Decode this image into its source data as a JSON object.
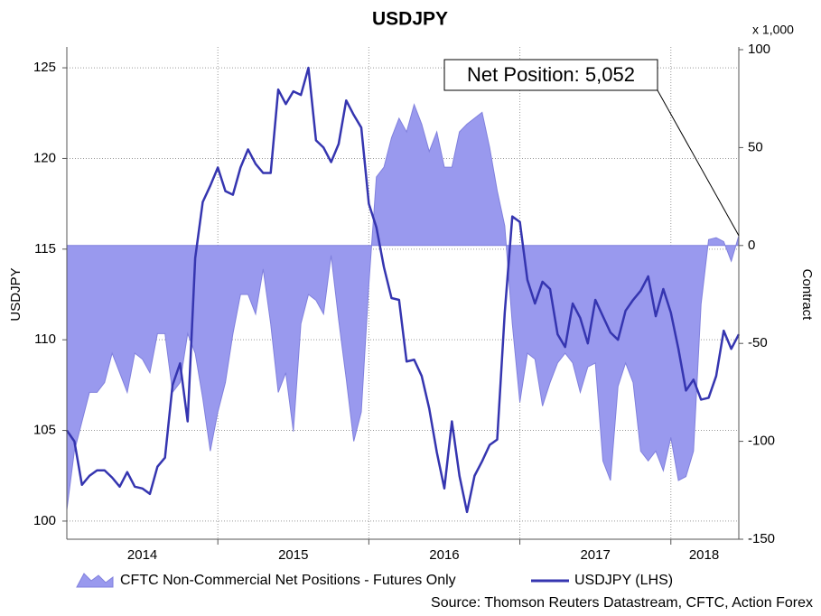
{
  "chart_data": {
    "type": "line-area",
    "title": "USDJPY",
    "y_label": "USDJPY",
    "y2_label": "Contract",
    "y2_unit": "x 1,000",
    "source": "Source: Thomson Reuters Datastream, CFTC, Action Forex",
    "annotation": "Net Position: 5,052",
    "x": [
      2014,
      2014.05,
      2014.1,
      2014.15,
      2014.2,
      2014.25,
      2014.3,
      2014.35,
      2014.4,
      2014.45,
      2014.5,
      2014.55,
      2014.6,
      2014.65,
      2014.7,
      2014.75,
      2014.8,
      2014.85,
      2014.9,
      2014.95,
      2015,
      2015.05,
      2015.1,
      2015.15,
      2015.2,
      2015.25,
      2015.3,
      2015.35,
      2015.4,
      2015.45,
      2015.5,
      2015.55,
      2015.6,
      2015.65,
      2015.7,
      2015.75,
      2015.8,
      2015.85,
      2015.9,
      2015.95,
      2016,
      2016.05,
      2016.1,
      2016.15,
      2016.2,
      2016.25,
      2016.3,
      2016.35,
      2016.4,
      2016.45,
      2016.5,
      2016.55,
      2016.6,
      2016.65,
      2016.7,
      2016.75,
      2016.8,
      2016.85,
      2016.9,
      2016.95,
      2017,
      2017.05,
      2017.1,
      2017.15,
      2017.2,
      2017.25,
      2017.3,
      2017.35,
      2017.4,
      2017.45,
      2017.5,
      2017.55,
      2017.6,
      2017.65,
      2017.7,
      2017.75,
      2017.8,
      2017.85,
      2017.9,
      2017.95,
      2018,
      2018.05,
      2018.1,
      2018.15,
      2018.2,
      2018.25,
      2018.3,
      2018.35,
      2018.4,
      2018.45
    ],
    "series": [
      {
        "name": "CFTC Non-Commercial Net Positions - Futures Only",
        "kind": "area",
        "axis": "y2",
        "color": "#9999ee",
        "edge": "#8080dd",
        "values": [
          -135,
          -105,
          -90,
          -75,
          -75,
          -70,
          -55,
          -65,
          -75,
          -55,
          -58,
          -65,
          -45,
          -45,
          -75,
          -70,
          -45,
          -55,
          -78,
          -105,
          -85,
          -70,
          -45,
          -25,
          -25,
          -35,
          -12,
          -40,
          -75,
          -65,
          -95,
          -40,
          -25,
          -28,
          -35,
          -5,
          -38,
          -68,
          -100,
          -85,
          -20,
          35,
          40,
          55,
          65,
          58,
          72,
          62,
          48,
          58,
          40,
          40,
          58,
          62,
          65,
          68,
          50,
          28,
          10,
          -40,
          -80,
          -55,
          -58,
          -82,
          -70,
          -60,
          -55,
          -60,
          -75,
          -62,
          -60,
          -110,
          -120,
          -72,
          -60,
          -70,
          -105,
          -110,
          -105,
          -115,
          -98,
          -120,
          -118,
          -105,
          -30,
          3,
          4,
          2,
          -8,
          5.052
        ]
      },
      {
        "name": "USDJPY (LHS)",
        "kind": "line",
        "axis": "y",
        "color": "#3535b0",
        "values": [
          105.0,
          104.4,
          102.0,
          102.5,
          102.8,
          102.8,
          102.4,
          101.9,
          102.7,
          101.9,
          101.8,
          101.5,
          103.0,
          103.5,
          107.5,
          108.7,
          105.5,
          114.5,
          117.6,
          118.5,
          119.5,
          118.2,
          118,
          119.5,
          120.5,
          119.7,
          119.2,
          119.2,
          123.8,
          123.0,
          123.7,
          123.5,
          125.0,
          121.0,
          120.6,
          119.8,
          120.8,
          123.2,
          122.4,
          121.7,
          117.5,
          116.2,
          114.0,
          112.3,
          112.2,
          108.8,
          108.9,
          108.0,
          106.2,
          103.8,
          101.8,
          105.5,
          102.5,
          100.5,
          102.5,
          103.3,
          104.2,
          104.5,
          111.5,
          116.8,
          116.5,
          113.3,
          112.0,
          113.2,
          112.8,
          110.3,
          109.6,
          112.0,
          111.2,
          109.8,
          112.2,
          111.3,
          110.4,
          110.0,
          111.6,
          112.2,
          112.7,
          113.5,
          111.3,
          112.8,
          111.5,
          109.5,
          107.2,
          107.8,
          106.7,
          106.8,
          108.0,
          110.5,
          109.5,
          110.3
        ]
      }
    ],
    "xlim": [
      2014,
      2018.45
    ],
    "xticks": [
      {
        "value": 2014.5,
        "label": "2014"
      },
      {
        "value": 2015.5,
        "label": "2015"
      },
      {
        "value": 2016.5,
        "label": "2016"
      },
      {
        "value": 2017.5,
        "label": "2017"
      },
      {
        "value": 2018.22,
        "label": "2018"
      }
    ],
    "xgrid": [
      2015,
      2016,
      2017,
      2018
    ],
    "ylim": [
      99,
      126
    ],
    "yticks": [
      100,
      105,
      110,
      115,
      120,
      125
    ],
    "y2lim": [
      -150,
      100
    ],
    "y2ticks": [
      -150,
      -100,
      -50,
      0,
      50,
      100
    ],
    "grid": true
  }
}
